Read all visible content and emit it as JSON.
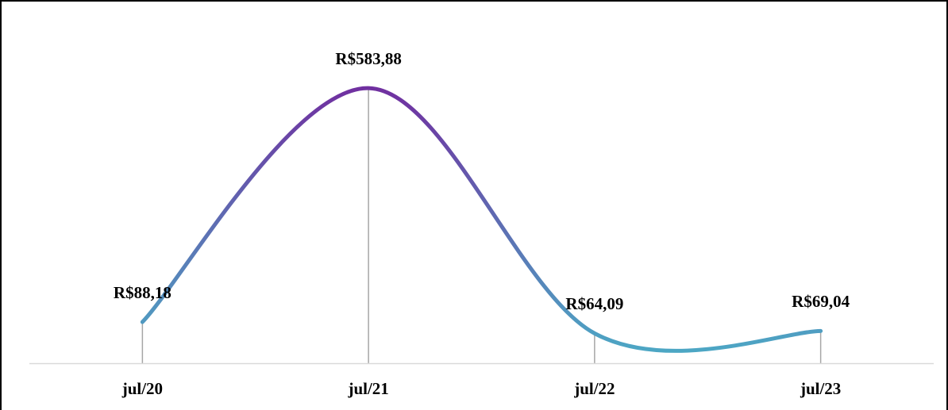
{
  "chart_data": {
    "type": "line",
    "categories": [
      "jul/20",
      "jul/21",
      "jul/22",
      "jul/23"
    ],
    "values": [
      88.18,
      583.88,
      64.09,
      69.04
    ],
    "value_labels": [
      "R$88,18",
      "R$583,88",
      "R$64,09",
      "R$69,04"
    ],
    "ylim": [
      0,
      700
    ],
    "color": [
      "#4bacc6",
      "#7030a0"
    ],
    "drop_lines": true
  }
}
